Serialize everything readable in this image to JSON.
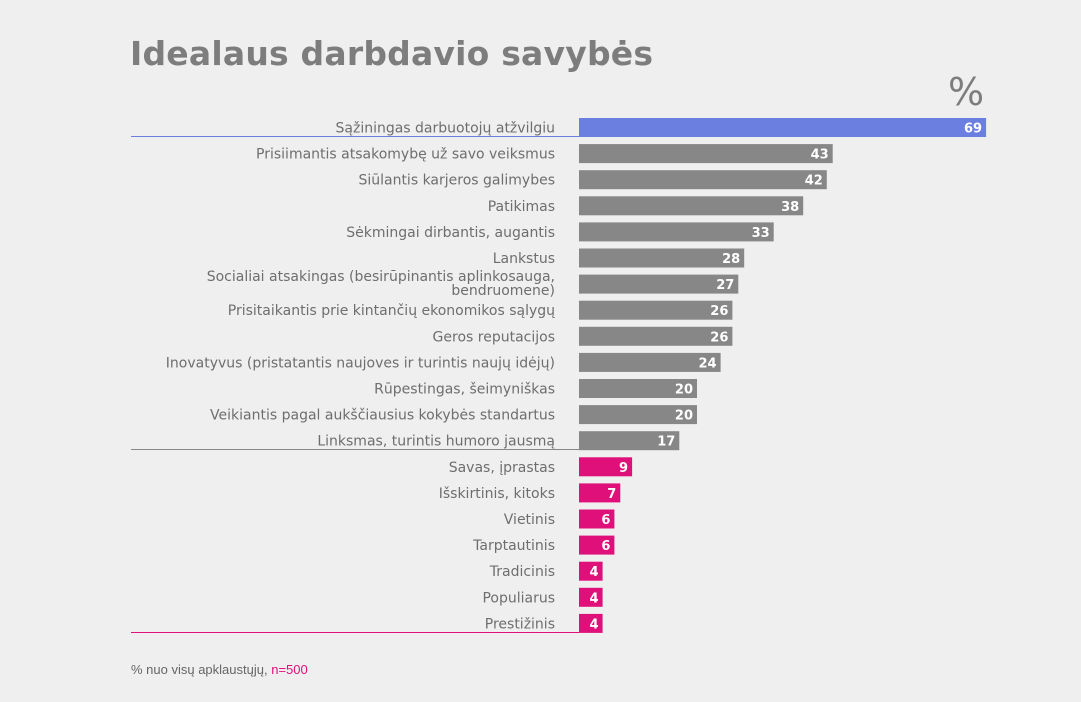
{
  "title": "Idealaus darbdavio savybės",
  "unit": "%",
  "footnote": {
    "text": "% nuo visų apklaustųjų,",
    "n": "n=500"
  },
  "colors": {
    "top": "#6b7fe0",
    "main": "#878787",
    "low": "#e0107a",
    "label": "#6e6e6e",
    "value": "#ffffff"
  },
  "chart_data": {
    "type": "bar",
    "orientation": "horizontal",
    "xlim": [
      0,
      70
    ],
    "categories": [
      "Sąžiningas darbuotojų atžvilgiu",
      "Prisiimantis atsakomybę už savo veiksmus",
      "Siūlantis karjeros galimybes",
      "Patikimas",
      "Sėkmingai dirbantis, augantis",
      "Lankstus",
      "Socialiai atsakingas (besirūpinantis aplinkosauga, bendruomene)",
      "Prisitaikantis prie kintančių ekonomikos sąlygų",
      "Geros reputacijos",
      "Inovatyvus (pristatantis naujoves ir turintis naujų idėjų)",
      "Rūpestingas, šeimyniškas",
      "Veikiantis pagal aukščiausius kokybės standartus",
      "Linksmas, turintis humoro jausmą",
      "Savas, įprastas",
      "Išskirtinis, kitoks",
      "Vietinis",
      "Tarptautinis",
      "Tradicinis",
      "Populiarus",
      "Prestižinis"
    ],
    "values": [
      69,
      43,
      42,
      38,
      33,
      28,
      27,
      26,
      26,
      24,
      20,
      20,
      17,
      9,
      7,
      6,
      6,
      4,
      4,
      4
    ],
    "groups": [
      "top",
      "main",
      "main",
      "main",
      "main",
      "main",
      "main",
      "main",
      "main",
      "main",
      "main",
      "main",
      "main",
      "low",
      "low",
      "low",
      "low",
      "low",
      "low",
      "low"
    ]
  }
}
